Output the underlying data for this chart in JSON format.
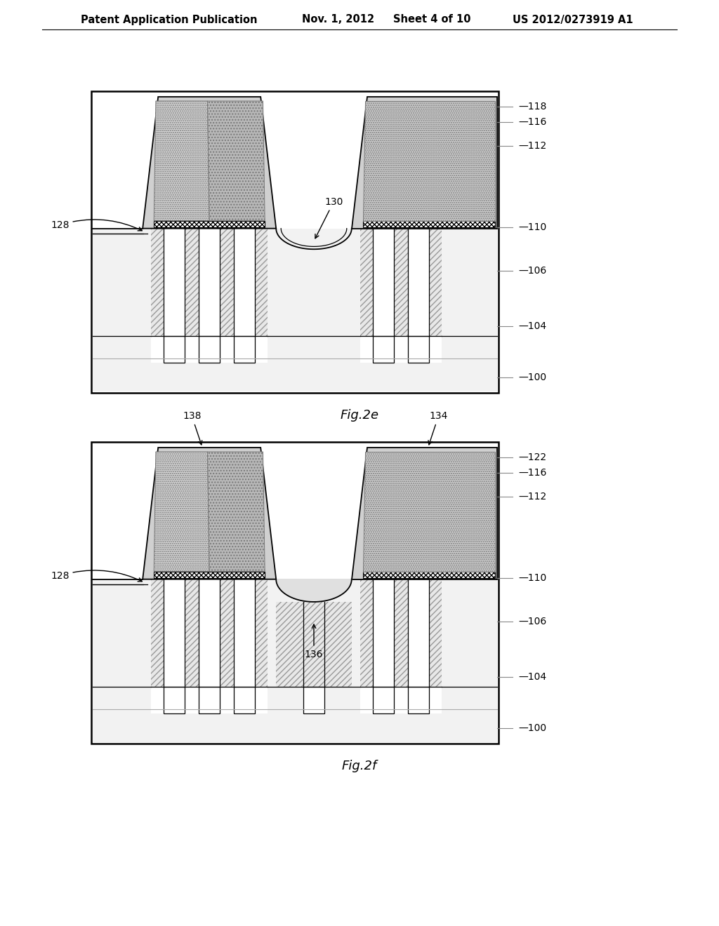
{
  "bg_color": "#ffffff",
  "lc": "#000000",
  "fig2e_label": "Fig.2e",
  "fig2f_label": "Fig.2f",
  "header": "Patent Application Publication     Nov. 1, 2012     Sheet 4 of 10     US 2012/0273919 A1",
  "gray_outer": "#d0d0d0",
  "gray_inner_light": "#c8c8c8",
  "gray_inner_dark": "#b0b0b0",
  "white": "#ffffff",
  "substrate_gray": "#f0f0f0",
  "hatch_fill": "#e0e0e0"
}
